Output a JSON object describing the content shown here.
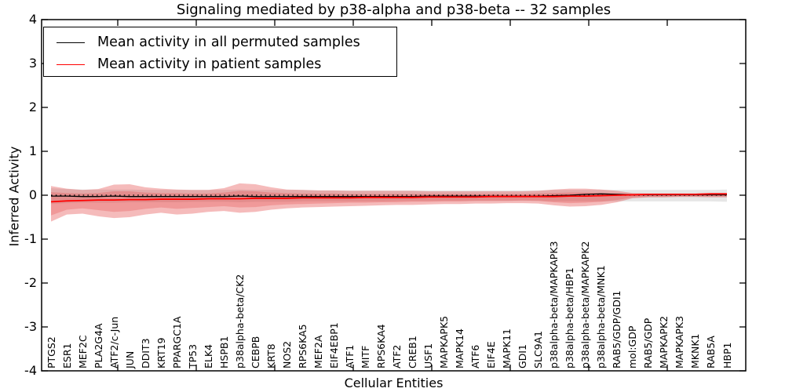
{
  "title": "Signaling mediated by p38-alpha and p38-beta -- 32 samples",
  "legend": {
    "items": [
      {
        "label": "Mean activity in all permuted samples",
        "color": "#000000"
      },
      {
        "label": "Mean activity in patient samples",
        "color": "#ff0000"
      }
    ]
  },
  "colors": {
    "permuted_line": "#000000",
    "patient_line": "#ff0000",
    "zero_reference_line": "#000000",
    "permuted_band": "rgba(60,60,60,0.13)",
    "patient_band_outer": "rgba(225,45,45,0.32)",
    "patient_band_inner": "rgba(225,45,45,0.24)",
    "axis": "#000000"
  },
  "chart_data": {
    "type": "line",
    "title": "Signaling mediated by p38-alpha and p38-beta -- 32 samples",
    "xlabel": "Cellular Entities",
    "ylabel": "Inferred Activity",
    "ylim": [
      -4,
      4
    ],
    "y_ticks": [
      "4",
      "3",
      "2",
      "1",
      "0",
      "-1",
      "-2",
      "-3",
      "-4"
    ],
    "y_tick_values": [
      4,
      3,
      2,
      1,
      0,
      -1,
      -2,
      -3,
      -4
    ],
    "x_major_tick_interval": 5,
    "grid": false,
    "legend_position": "upper left",
    "categories": [
      "PTGS2",
      "ESR1",
      "MEF2C",
      "PLA2G4A",
      "ATF2/c-Jun",
      "JUN",
      "DDIT3",
      "KRT19",
      "PPARGC1A",
      "TP53",
      "ELK4",
      "HSPB1",
      "p38alpha-beta/CK2",
      "CEBPB",
      "KRT8",
      "NOS2",
      "RPS6KA5",
      "MEF2A",
      "EIF4EBP1",
      "ATF1",
      "MITF",
      "RPS6KA4",
      "ATF2",
      "CREB1",
      "USF1",
      "MAPKAPK5",
      "MAPK14",
      "ATF6",
      "EIF4E",
      "MAPK11",
      "GDI1",
      "SLC9A1",
      "p38alpha-beta/MAPKAPK3",
      "p38alpha-beta/HBP1",
      "p38alpha-beta/MAPKAPK2",
      "p38alpha-beta/MNK1",
      "RAB5/GDP/GDI1",
      "mol:GDP",
      "RAB5/GDP",
      "MAPKAPK2",
      "MAPKAPK3",
      "MKNK1",
      "RAB5A",
      "HBP1"
    ],
    "series": [
      {
        "name": "Mean activity in all permuted samples",
        "style": "solid",
        "color": "#000000",
        "values": [
          -0.02,
          -0.02,
          -0.03,
          -0.03,
          -0.02,
          -0.03,
          -0.03,
          -0.03,
          -0.03,
          -0.03,
          -0.03,
          -0.03,
          -0.02,
          -0.03,
          -0.03,
          -0.03,
          -0.03,
          -0.03,
          -0.03,
          -0.03,
          -0.03,
          -0.03,
          -0.03,
          -0.03,
          -0.02,
          -0.02,
          -0.02,
          -0.02,
          -0.02,
          -0.02,
          -0.02,
          -0.02,
          -0.01,
          0.0,
          0.02,
          0.03,
          0.02,
          0.01,
          0.01,
          0.01,
          0.01,
          0.01,
          0.01,
          0.01
        ]
      },
      {
        "name": "Mean activity in patient samples",
        "style": "solid",
        "color": "#ff0000",
        "values": [
          -0.15,
          -0.13,
          -0.12,
          -0.11,
          -0.11,
          -0.1,
          -0.1,
          -0.09,
          -0.09,
          -0.09,
          -0.08,
          -0.08,
          -0.08,
          -0.07,
          -0.07,
          -0.07,
          -0.06,
          -0.06,
          -0.06,
          -0.06,
          -0.05,
          -0.05,
          -0.05,
          -0.05,
          -0.04,
          -0.04,
          -0.04,
          -0.04,
          -0.03,
          -0.03,
          -0.03,
          -0.03,
          -0.03,
          -0.02,
          -0.02,
          -0.01,
          0.0,
          0.01,
          0.02,
          0.02,
          0.02,
          0.02,
          0.03,
          0.03
        ]
      },
      {
        "name": "zero-reference",
        "style": "dotted",
        "color": "#000000",
        "values": [
          0,
          0,
          0,
          0,
          0,
          0,
          0,
          0,
          0,
          0,
          0,
          0,
          0,
          0,
          0,
          0,
          0,
          0,
          0,
          0,
          0,
          0,
          0,
          0,
          0,
          0,
          0,
          0,
          0,
          0,
          0,
          0,
          0,
          0,
          0,
          0,
          0,
          0,
          0,
          0,
          0,
          0,
          0,
          0
        ]
      }
    ],
    "bands": [
      {
        "name": "permuted-range",
        "fill": "rgba(60,60,60,0.13)",
        "upper": [
          0.16,
          0.14,
          0.13,
          0.13,
          0.13,
          0.13,
          0.12,
          0.12,
          0.12,
          0.12,
          0.12,
          0.12,
          0.13,
          0.12,
          0.12,
          0.12,
          0.12,
          0.11,
          0.11,
          0.11,
          0.11,
          0.11,
          0.11,
          0.11,
          0.11,
          0.11,
          0.11,
          0.11,
          0.11,
          0.11,
          0.11,
          0.11,
          0.12,
          0.12,
          0.12,
          0.12,
          0.12,
          0.12,
          0.12,
          0.12,
          0.12,
          0.12,
          0.12,
          0.13
        ],
        "lower": [
          -0.2,
          -0.18,
          -0.17,
          -0.17,
          -0.17,
          -0.16,
          -0.16,
          -0.16,
          -0.16,
          -0.15,
          -0.15,
          -0.15,
          -0.16,
          -0.15,
          -0.15,
          -0.15,
          -0.14,
          -0.14,
          -0.14,
          -0.14,
          -0.14,
          -0.14,
          -0.13,
          -0.13,
          -0.13,
          -0.13,
          -0.13,
          -0.13,
          -0.13,
          -0.13,
          -0.13,
          -0.13,
          -0.14,
          -0.14,
          -0.14,
          -0.14,
          -0.14,
          -0.14,
          -0.14,
          -0.14,
          -0.14,
          -0.14,
          -0.14,
          -0.15
        ]
      },
      {
        "name": "patient-range-outer",
        "fill": "rgba(225,45,45,0.32)",
        "upper": [
          0.21,
          0.15,
          0.12,
          0.14,
          0.24,
          0.25,
          0.18,
          0.15,
          0.13,
          0.12,
          0.12,
          0.16,
          0.27,
          0.25,
          0.18,
          0.13,
          0.12,
          0.11,
          0.11,
          0.1,
          0.1,
          0.1,
          0.1,
          0.1,
          0.09,
          0.09,
          0.09,
          0.09,
          0.09,
          0.09,
          0.09,
          0.1,
          0.13,
          0.15,
          0.15,
          0.13,
          0.1,
          0.05,
          0.04,
          0.04,
          0.04,
          0.04,
          0.05,
          0.05
        ],
        "lower": [
          -0.6,
          -0.44,
          -0.42,
          -0.48,
          -0.52,
          -0.5,
          -0.44,
          -0.4,
          -0.44,
          -0.42,
          -0.38,
          -0.36,
          -0.4,
          -0.38,
          -0.33,
          -0.3,
          -0.28,
          -0.27,
          -0.26,
          -0.25,
          -0.24,
          -0.23,
          -0.22,
          -0.22,
          -0.21,
          -0.2,
          -0.2,
          -0.19,
          -0.19,
          -0.18,
          -0.18,
          -0.19,
          -0.23,
          -0.26,
          -0.25,
          -0.22,
          -0.16,
          -0.07,
          -0.05,
          -0.05,
          -0.04,
          -0.04,
          -0.05,
          -0.05
        ]
      },
      {
        "name": "patient-range-inner",
        "fill": "rgba(225,45,45,0.24)",
        "upper": [
          0.07,
          0.05,
          0.04,
          0.05,
          0.09,
          0.09,
          0.06,
          0.05,
          0.05,
          0.04,
          0.04,
          0.06,
          0.1,
          0.09,
          0.06,
          0.05,
          0.04,
          0.04,
          0.04,
          0.03,
          0.03,
          0.03,
          0.03,
          0.03,
          0.03,
          0.03,
          0.03,
          0.03,
          0.03,
          0.03,
          0.03,
          0.04,
          0.05,
          0.06,
          0.06,
          0.05,
          0.04,
          0.03,
          0.02,
          0.02,
          0.02,
          0.02,
          0.03,
          0.03
        ],
        "lower": [
          -0.46,
          -0.33,
          -0.3,
          -0.34,
          -0.38,
          -0.36,
          -0.31,
          -0.28,
          -0.31,
          -0.29,
          -0.27,
          -0.25,
          -0.28,
          -0.27,
          -0.23,
          -0.21,
          -0.2,
          -0.19,
          -0.18,
          -0.17,
          -0.17,
          -0.16,
          -0.16,
          -0.15,
          -0.15,
          -0.14,
          -0.14,
          -0.13,
          -0.13,
          -0.13,
          -0.12,
          -0.13,
          -0.16,
          -0.18,
          -0.17,
          -0.15,
          -0.11,
          -0.05,
          -0.04,
          -0.04,
          -0.03,
          -0.03,
          -0.03,
          -0.03
        ]
      }
    ]
  }
}
